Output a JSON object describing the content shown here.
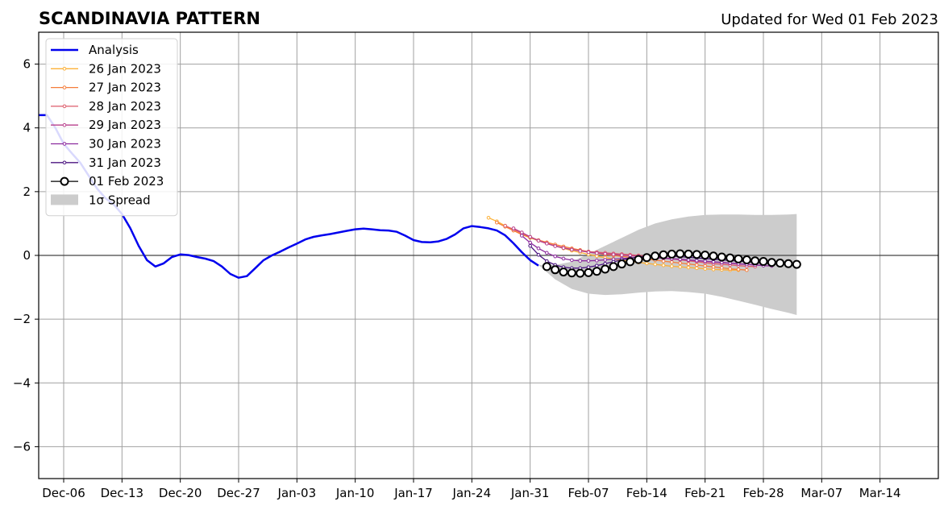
{
  "header": {
    "title": "SCANDINAVIA PATTERN",
    "updated": "Updated for Wed 01 Feb 2023"
  },
  "chart_data": {
    "type": "line",
    "title": "SCANDINAVIA PATTERN",
    "xlabel": "",
    "ylabel": "",
    "x_axis": {
      "type": "date",
      "range": [
        "2022-12-03",
        "2023-03-21"
      ],
      "ticks": [
        "2022-12-06",
        "2022-12-13",
        "2022-12-20",
        "2022-12-27",
        "2023-01-03",
        "2023-01-10",
        "2023-01-17",
        "2023-01-24",
        "2023-01-31",
        "2023-02-07",
        "2023-02-14",
        "2023-02-21",
        "2023-02-28",
        "2023-03-07",
        "2023-03-14"
      ],
      "tick_labels": [
        "Dec-06",
        "Dec-13",
        "Dec-20",
        "Dec-27",
        "Jan-03",
        "Jan-10",
        "Jan-17",
        "Jan-24",
        "Jan-31",
        "Feb-07",
        "Feb-14",
        "Feb-21",
        "Feb-28",
        "Mar-07",
        "Mar-14"
      ]
    },
    "y_axis": {
      "range": [
        -7,
        7
      ],
      "ticks": [
        -6,
        -4,
        -2,
        0,
        2,
        4,
        6
      ],
      "tick_labels": [
        "−6",
        "−4",
        "−2",
        "0",
        "2",
        "4",
        "6"
      ]
    },
    "grid": true,
    "zero_line": true,
    "legend_position": "top-left",
    "series": [
      {
        "name": "Analysis",
        "color": "#0000ee",
        "marker": "none",
        "x": [
          "2022-12-03",
          "2022-12-04",
          "2022-12-05",
          "2022-12-06",
          "2022-12-07",
          "2022-12-08",
          "2022-12-09",
          "2022-12-10",
          "2022-12-11",
          "2022-12-12",
          "2022-12-13",
          "2022-12-14",
          "2022-12-15",
          "2022-12-16",
          "2022-12-17",
          "2022-12-18",
          "2022-12-19",
          "2022-12-20",
          "2022-12-21",
          "2022-12-22",
          "2022-12-23",
          "2022-12-24",
          "2022-12-25",
          "2022-12-26",
          "2022-12-27",
          "2022-12-28",
          "2022-12-29",
          "2022-12-30",
          "2022-12-31",
          "2023-01-01",
          "2023-01-02",
          "2023-01-03",
          "2023-01-04",
          "2023-01-05",
          "2023-01-06",
          "2023-01-07",
          "2023-01-08",
          "2023-01-09",
          "2023-01-10",
          "2023-01-11",
          "2023-01-12",
          "2023-01-13",
          "2023-01-14",
          "2023-01-15",
          "2023-01-16",
          "2023-01-17",
          "2023-01-18",
          "2023-01-19",
          "2023-01-20",
          "2023-01-21",
          "2023-01-22",
          "2023-01-23",
          "2023-01-24",
          "2023-01-25",
          "2023-01-26",
          "2023-01-27",
          "2023-01-28",
          "2023-01-29",
          "2023-01-30",
          "2023-01-31",
          "2023-02-01"
        ],
        "y": [
          4.4,
          4.4,
          4.0,
          3.5,
          3.2,
          2.9,
          2.5,
          2.1,
          1.8,
          1.6,
          1.3,
          0.85,
          0.3,
          -0.15,
          -0.35,
          -0.25,
          -0.05,
          0.03,
          0.01,
          -0.05,
          -0.1,
          -0.18,
          -0.35,
          -0.58,
          -0.7,
          -0.65,
          -0.4,
          -0.15,
          0.0,
          0.12,
          0.25,
          0.37,
          0.5,
          0.58,
          0.63,
          0.67,
          0.72,
          0.77,
          0.82,
          0.84,
          0.82,
          0.79,
          0.78,
          0.74,
          0.62,
          0.48,
          0.42,
          0.41,
          0.44,
          0.52,
          0.66,
          0.85,
          0.92,
          0.89,
          0.85,
          0.78,
          0.63,
          0.38,
          0.1,
          -0.15,
          -0.32
        ]
      },
      {
        "name": "26 Jan 2023",
        "color": "#fcb036",
        "marker": "small-dot",
        "x": [
          "2023-01-26",
          "2023-01-27",
          "2023-01-28",
          "2023-01-29",
          "2023-01-30",
          "2023-01-31",
          "2023-02-01",
          "2023-02-02",
          "2023-02-03",
          "2023-02-04",
          "2023-02-05",
          "2023-02-06",
          "2023-02-07",
          "2023-02-08",
          "2023-02-09",
          "2023-02-10",
          "2023-02-11",
          "2023-02-12",
          "2023-02-13",
          "2023-02-14",
          "2023-02-15",
          "2023-02-16",
          "2023-02-17",
          "2023-02-18",
          "2023-02-19",
          "2023-02-20",
          "2023-02-21",
          "2023-02-22",
          "2023-02-23",
          "2023-02-24",
          "2023-02-25"
        ],
        "y": [
          1.18,
          1.07,
          0.93,
          0.78,
          0.65,
          0.55,
          0.46,
          0.38,
          0.3,
          0.22,
          0.15,
          0.09,
          0.03,
          -0.02,
          -0.07,
          -0.11,
          -0.15,
          -0.19,
          -0.22,
          -0.25,
          -0.28,
          -0.31,
          -0.34,
          -0.36,
          -0.38,
          -0.4,
          -0.42,
          -0.44,
          -0.45,
          -0.46,
          -0.46
        ]
      },
      {
        "name": "27 Jan 2023",
        "color": "#f57d3a",
        "marker": "small-dot",
        "x": [
          "2023-01-27",
          "2023-01-28",
          "2023-01-29",
          "2023-01-30",
          "2023-01-31",
          "2023-02-01",
          "2023-02-02",
          "2023-02-03",
          "2023-02-04",
          "2023-02-05",
          "2023-02-06",
          "2023-02-07",
          "2023-02-08",
          "2023-02-09",
          "2023-02-10",
          "2023-02-11",
          "2023-02-12",
          "2023-02-13",
          "2023-02-14",
          "2023-02-15",
          "2023-02-16",
          "2023-02-17",
          "2023-02-18",
          "2023-02-19",
          "2023-02-20",
          "2023-02-21",
          "2023-02-22",
          "2023-02-23",
          "2023-02-24",
          "2023-02-25",
          "2023-02-26"
        ],
        "y": [
          1.03,
          0.9,
          0.78,
          0.66,
          0.56,
          0.48,
          0.41,
          0.34,
          0.28,
          0.22,
          0.17,
          0.12,
          0.07,
          0.03,
          0.0,
          -0.03,
          -0.06,
          -0.09,
          -0.12,
          -0.15,
          -0.18,
          -0.21,
          -0.24,
          -0.27,
          -0.3,
          -0.33,
          -0.36,
          -0.39,
          -0.42,
          -0.44,
          -0.46
        ]
      },
      {
        "name": "28 Jan 2023",
        "color": "#dd5b6a",
        "marker": "small-dot",
        "x": [
          "2023-01-28",
          "2023-01-29",
          "2023-01-30",
          "2023-01-31",
          "2023-02-01",
          "2023-02-02",
          "2023-02-03",
          "2023-02-04",
          "2023-02-05",
          "2023-02-06",
          "2023-02-07",
          "2023-02-08",
          "2023-02-09",
          "2023-02-10",
          "2023-02-11",
          "2023-02-12",
          "2023-02-13",
          "2023-02-14",
          "2023-02-15",
          "2023-02-16",
          "2023-02-17",
          "2023-02-18",
          "2023-02-19",
          "2023-02-20",
          "2023-02-21",
          "2023-02-22",
          "2023-02-23",
          "2023-02-24",
          "2023-02-25",
          "2023-02-26",
          "2023-02-27"
        ],
        "y": [
          0.93,
          0.82,
          0.7,
          0.58,
          0.47,
          0.38,
          0.3,
          0.24,
          0.19,
          0.15,
          0.12,
          0.1,
          0.08,
          0.06,
          0.04,
          0.02,
          0.0,
          -0.02,
          -0.05,
          -0.08,
          -0.11,
          -0.14,
          -0.17,
          -0.2,
          -0.23,
          -0.26,
          -0.28,
          -0.3,
          -0.32,
          -0.34,
          -0.35
        ]
      },
      {
        "name": "29 Jan 2023",
        "color": "#b83f8c",
        "marker": "small-dot",
        "x": [
          "2023-01-29",
          "2023-01-30",
          "2023-01-31",
          "2023-02-01",
          "2023-02-02",
          "2023-02-03",
          "2023-02-04",
          "2023-02-05",
          "2023-02-06",
          "2023-02-07",
          "2023-02-08",
          "2023-02-09",
          "2023-02-10",
          "2023-02-11",
          "2023-02-12",
          "2023-02-13",
          "2023-02-14",
          "2023-02-15",
          "2023-02-16",
          "2023-02-17",
          "2023-02-18",
          "2023-02-19",
          "2023-02-20",
          "2023-02-21",
          "2023-02-22",
          "2023-02-23",
          "2023-02-24",
          "2023-02-25",
          "2023-02-26",
          "2023-02-27",
          "2023-02-28"
        ],
        "y": [
          0.85,
          0.72,
          0.58,
          0.46,
          0.37,
          0.29,
          0.23,
          0.18,
          0.14,
          0.1,
          0.07,
          0.05,
          0.03,
          0.01,
          -0.01,
          -0.03,
          -0.05,
          -0.07,
          -0.09,
          -0.11,
          -0.13,
          -0.15,
          -0.17,
          -0.19,
          -0.21,
          -0.23,
          -0.25,
          -0.27,
          -0.28,
          -0.3,
          -0.31
        ]
      },
      {
        "name": "30 Jan 2023",
        "color": "#8c2a9e",
        "marker": "small-dot",
        "x": [
          "2023-01-30",
          "2023-01-31",
          "2023-02-01",
          "2023-02-02",
          "2023-02-03",
          "2023-02-04",
          "2023-02-05",
          "2023-02-06",
          "2023-02-07",
          "2023-02-08",
          "2023-02-09",
          "2023-02-10",
          "2023-02-11",
          "2023-02-12",
          "2023-02-13",
          "2023-02-14",
          "2023-02-15",
          "2023-02-16",
          "2023-02-17",
          "2023-02-18",
          "2023-02-19",
          "2023-02-20",
          "2023-02-21",
          "2023-02-22",
          "2023-02-23",
          "2023-02-24",
          "2023-02-25",
          "2023-02-26",
          "2023-02-27",
          "2023-02-28",
          "2023-03-01"
        ],
        "y": [
          0.62,
          0.4,
          0.22,
          0.08,
          -0.03,
          -0.1,
          -0.15,
          -0.17,
          -0.17,
          -0.16,
          -0.14,
          -0.12,
          -0.1,
          -0.08,
          -0.06,
          -0.06,
          -0.07,
          -0.08,
          -0.1,
          -0.12,
          -0.14,
          -0.16,
          -0.18,
          -0.2,
          -0.22,
          -0.24,
          -0.26,
          -0.28,
          -0.3,
          -0.32,
          -0.33
        ]
      },
      {
        "name": "31 Jan 2023",
        "color": "#4b1480",
        "marker": "small-dot",
        "x": [
          "2023-01-31",
          "2023-02-01",
          "2023-02-02",
          "2023-02-03",
          "2023-02-04",
          "2023-02-05",
          "2023-02-06",
          "2023-02-07",
          "2023-02-08",
          "2023-02-09",
          "2023-02-10",
          "2023-02-11",
          "2023-02-12",
          "2023-02-13",
          "2023-02-14",
          "2023-02-15",
          "2023-02-16",
          "2023-02-17",
          "2023-02-18",
          "2023-02-19",
          "2023-02-20",
          "2023-02-21",
          "2023-02-22",
          "2023-02-23",
          "2023-02-24",
          "2023-02-25",
          "2023-02-26",
          "2023-02-27",
          "2023-02-28",
          "2023-03-01",
          "2023-03-02"
        ],
        "y": [
          0.3,
          0.02,
          -0.18,
          -0.3,
          -0.37,
          -0.4,
          -0.4,
          -0.37,
          -0.32,
          -0.26,
          -0.2,
          -0.14,
          -0.09,
          -0.05,
          -0.02,
          0.0,
          0.0,
          -0.02,
          -0.04,
          -0.06,
          -0.08,
          -0.1,
          -0.12,
          -0.14,
          -0.16,
          -0.18,
          -0.2,
          -0.22,
          -0.24,
          -0.26,
          -0.28
        ]
      },
      {
        "name": "01 Feb 2023",
        "color": "#000000",
        "marker": "open-circle",
        "x": [
          "2023-02-02",
          "2023-02-03",
          "2023-02-04",
          "2023-02-05",
          "2023-02-06",
          "2023-02-07",
          "2023-02-08",
          "2023-02-09",
          "2023-02-10",
          "2023-02-11",
          "2023-02-12",
          "2023-02-13",
          "2023-02-14",
          "2023-02-15",
          "2023-02-16",
          "2023-02-17",
          "2023-02-18",
          "2023-02-19",
          "2023-02-20",
          "2023-02-21",
          "2023-02-22",
          "2023-02-23",
          "2023-02-24",
          "2023-02-25",
          "2023-02-26",
          "2023-02-27",
          "2023-02-28",
          "2023-03-01",
          "2023-03-02",
          "2023-03-03",
          "2023-03-04"
        ],
        "y": [
          -0.35,
          -0.45,
          -0.52,
          -0.55,
          -0.56,
          -0.54,
          -0.5,
          -0.43,
          -0.35,
          -0.27,
          -0.2,
          -0.13,
          -0.07,
          -0.02,
          0.02,
          0.04,
          0.05,
          0.04,
          0.03,
          0.01,
          -0.02,
          -0.05,
          -0.08,
          -0.11,
          -0.14,
          -0.17,
          -0.19,
          -0.22,
          -0.24,
          -0.26,
          -0.28
        ]
      }
    ],
    "spread": {
      "name": "1σ Spread",
      "color": "#cccccc",
      "x": [
        "2023-02-01",
        "2023-02-03",
        "2023-02-05",
        "2023-02-07",
        "2023-02-09",
        "2023-02-11",
        "2023-02-13",
        "2023-02-15",
        "2023-02-17",
        "2023-02-19",
        "2023-02-21",
        "2023-02-23",
        "2023-02-25",
        "2023-02-27",
        "2023-03-01",
        "2023-03-03",
        "2023-03-04"
      ],
      "upper": [
        -0.3,
        -0.3,
        -0.2,
        0.05,
        0.3,
        0.55,
        0.8,
        1.0,
        1.13,
        1.22,
        1.27,
        1.28,
        1.28,
        1.27,
        1.27,
        1.28,
        1.3
      ],
      "lower": [
        -0.3,
        -0.75,
        -1.05,
        -1.2,
        -1.24,
        -1.22,
        -1.17,
        -1.13,
        -1.12,
        -1.15,
        -1.2,
        -1.3,
        -1.42,
        -1.55,
        -1.68,
        -1.8,
        -1.87
      ]
    }
  }
}
